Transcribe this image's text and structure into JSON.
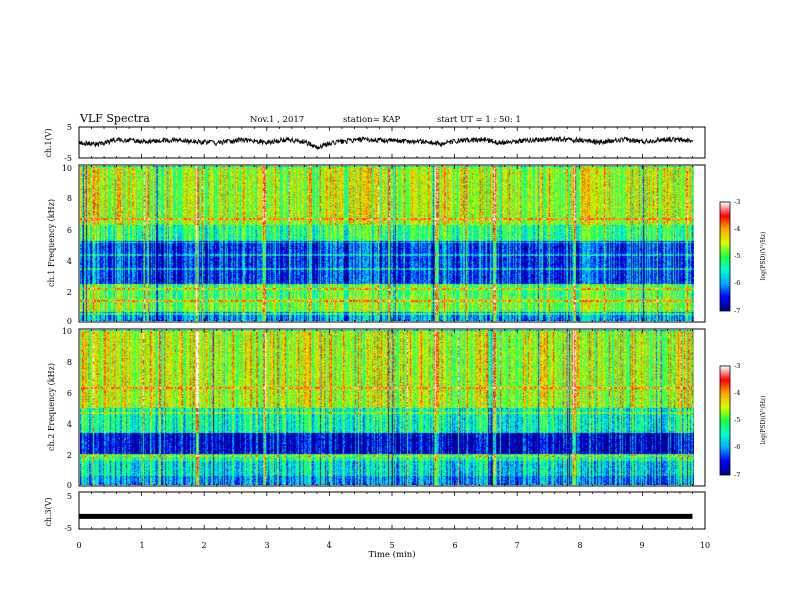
{
  "header": {
    "title": "VLF Spectra",
    "date": "Nov.1 , 2017",
    "station": "station= KAP",
    "start": "start UT = 1 : 50: 1"
  },
  "colors": {
    "background": "#ffffff",
    "axis": "#000000",
    "colormap": [
      "#00008c",
      "#0000ff",
      "#00aaff",
      "#00ffd0",
      "#20ff40",
      "#d8ff00",
      "#ffaa00",
      "#ff0000",
      "#ffffff"
    ]
  },
  "chart_data": [
    {
      "id": "waveform-ch1",
      "type": "line",
      "ylabel": "ch.1(V)",
      "yticks": [
        "5",
        "-5"
      ],
      "ylim": [
        -5,
        5
      ],
      "xlim": [
        0,
        10
      ],
      "trend": [
        [
          0.0,
          0.1
        ],
        [
          0.3,
          -0.6
        ],
        [
          0.6,
          0.9
        ],
        [
          1.0,
          0.2
        ],
        [
          1.4,
          0.8
        ],
        [
          1.8,
          0.4
        ],
        [
          2.2,
          -0.2
        ],
        [
          2.6,
          0.9
        ],
        [
          3.0,
          0.1
        ],
        [
          3.3,
          1.0
        ],
        [
          3.6,
          0.3
        ],
        [
          3.8,
          -1.6
        ],
        [
          4.1,
          0.1
        ],
        [
          4.5,
          0.9
        ],
        [
          5.0,
          0.6
        ],
        [
          5.5,
          0.3
        ],
        [
          5.8,
          -0.5
        ],
        [
          6.0,
          0.4
        ],
        [
          6.5,
          1.0
        ],
        [
          6.7,
          0.0
        ],
        [
          7.0,
          0.5
        ],
        [
          7.5,
          1.1
        ],
        [
          8.0,
          0.8
        ],
        [
          8.3,
          0.0
        ],
        [
          8.7,
          0.9
        ],
        [
          9.0,
          0.3
        ],
        [
          9.4,
          1.1
        ],
        [
          9.8,
          0.5
        ]
      ]
    },
    {
      "id": "spectrogram-ch1",
      "type": "heatmap",
      "ylabel": "ch.1 Frequency (kHz)",
      "ylim": [
        0,
        10
      ],
      "xlim": [
        0,
        10
      ],
      "yticks": [
        "0",
        "2",
        "4",
        "6",
        "8",
        "10"
      ],
      "bands_khz": [
        {
          "from": 0.0,
          "to": 0.6,
          "level": 0.25
        },
        {
          "from": 0.6,
          "to": 1.5,
          "level": 0.55
        },
        {
          "from": 1.5,
          "to": 2.4,
          "level": 0.5
        },
        {
          "from": 2.4,
          "to": 5.2,
          "level": 0.15
        },
        {
          "from": 5.2,
          "to": 6.2,
          "level": 0.45
        },
        {
          "from": 6.2,
          "to": 10.0,
          "level": 0.6
        }
      ],
      "lines_khz": [
        0.5,
        1.3,
        2.1,
        3.4,
        4.3,
        5.1,
        6.6
      ],
      "bursts_min": [
        1.9,
        3.0,
        3.75,
        5.8,
        6.75,
        8.05
      ]
    },
    {
      "id": "colorbar-ch1",
      "type": "heatmap",
      "label": "log(PSD)(V²/Hz)",
      "ylim": [
        -7,
        -3
      ],
      "ticks": [
        "-3",
        "-4",
        "-5",
        "-6",
        "-7"
      ]
    },
    {
      "id": "spectrogram-ch2",
      "type": "heatmap",
      "ylabel": "ch.2 Frequency (kHz)",
      "ylim": [
        0,
        10
      ],
      "xlim": [
        0,
        10
      ],
      "yticks": [
        "0",
        "2",
        "4",
        "6",
        "8",
        "10"
      ],
      "bands_khz": [
        {
          "from": 0.0,
          "to": 0.6,
          "level": 0.25
        },
        {
          "from": 0.6,
          "to": 1.6,
          "level": 0.35
        },
        {
          "from": 1.6,
          "to": 2.0,
          "level": 0.45
        },
        {
          "from": 2.0,
          "to": 3.4,
          "level": 0.08
        },
        {
          "from": 3.4,
          "to": 5.0,
          "level": 0.4
        },
        {
          "from": 5.0,
          "to": 10.0,
          "level": 0.62
        }
      ],
      "lines_khz": [
        1.9,
        4.7,
        6.3
      ],
      "bursts_min": [
        1.9,
        3.0,
        3.75,
        5.8,
        6.75,
        8.05
      ]
    },
    {
      "id": "colorbar-ch2",
      "type": "heatmap",
      "label": "log(PSD)(V²/Hz)",
      "ylim": [
        -7,
        -3
      ],
      "ticks": [
        "-3",
        "-4",
        "-5",
        "-6",
        "-7"
      ]
    },
    {
      "id": "waveform-ch3",
      "type": "line",
      "ylabel": "ch.3(V)",
      "yticks": [
        "5",
        "-5"
      ],
      "ylim": [
        -5,
        5
      ],
      "xlim": [
        0,
        10
      ],
      "value": -1.5
    }
  ],
  "x_axis": {
    "label": "Time (min)",
    "ticks": [
      "0",
      "1",
      "2",
      "3",
      "4",
      "5",
      "6",
      "7",
      "8",
      "9",
      "10"
    ],
    "range": [
      0,
      10
    ]
  }
}
